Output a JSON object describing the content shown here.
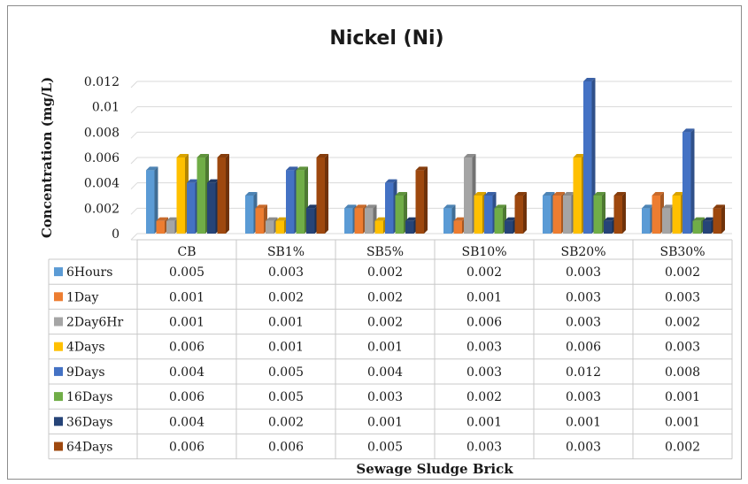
{
  "chart_data": {
    "type": "bar",
    "title": "Nickel (Ni)",
    "xlabel": "Sewage Sludge Brick",
    "ylabel": "Concentration (mg/L)",
    "ylim": [
      0,
      0.012
    ],
    "yticks": [
      "0.012",
      "0.01",
      "0.008",
      "0.006",
      "0.004",
      "0.002",
      "0"
    ],
    "grid": true,
    "legend": "data-table",
    "categories": [
      "CB",
      "SB1%",
      "SB5%",
      "SB10%",
      "SB20%",
      "SB30%"
    ],
    "series": [
      {
        "name": "6Hours",
        "color": "#5b9bd5",
        "values": [
          0.005,
          0.003,
          0.002,
          0.002,
          0.003,
          0.002
        ],
        "labels": [
          "0.005",
          "0.003",
          "0.002",
          "0.002",
          "0.003",
          "0.002"
        ]
      },
      {
        "name": "1Day",
        "color": "#ed7d31",
        "values": [
          0.001,
          0.002,
          0.002,
          0.001,
          0.003,
          0.003
        ],
        "labels": [
          "0.001",
          "0.002",
          "0.002",
          "0.001",
          "0.003",
          "0.003"
        ]
      },
      {
        "name": "2Day6Hr",
        "color": "#a5a5a5",
        "values": [
          0.001,
          0.001,
          0.002,
          0.006,
          0.003,
          0.002
        ],
        "labels": [
          "0.001",
          "0.001",
          "0.002",
          "0.006",
          "0.003",
          "0.002"
        ]
      },
      {
        "name": "4Days",
        "color": "#ffc000",
        "values": [
          0.006,
          0.001,
          0.001,
          0.003,
          0.006,
          0.003
        ],
        "labels": [
          "0.006",
          "0.001",
          "0.001",
          "0.003",
          "0.006",
          "0.003"
        ]
      },
      {
        "name": "9Days",
        "color": "#4472c4",
        "values": [
          0.004,
          0.005,
          0.004,
          0.003,
          0.012,
          0.008
        ],
        "labels": [
          "0.004",
          "0.005",
          "0.004",
          "0.003",
          "0.012",
          "0.008"
        ]
      },
      {
        "name": "16Days",
        "color": "#70ad47",
        "values": [
          0.006,
          0.005,
          0.003,
          0.002,
          0.003,
          0.001
        ],
        "labels": [
          "0.006",
          "0.005",
          "0.003",
          "0.002",
          "0.003",
          "0.001"
        ]
      },
      {
        "name": "36Days",
        "color": "#264478",
        "values": [
          0.004,
          0.002,
          0.001,
          0.001,
          0.001,
          0.001
        ],
        "labels": [
          "0.004",
          "0.002",
          "0.001",
          "0.001",
          "0.001",
          "0.001"
        ]
      },
      {
        "name": "64Days",
        "color": "#9e480e",
        "values": [
          0.006,
          0.006,
          0.005,
          0.003,
          0.003,
          0.002
        ],
        "labels": [
          "0.006",
          "0.006",
          "0.005",
          "0.003",
          "0.003",
          "0.002"
        ]
      }
    ]
  }
}
